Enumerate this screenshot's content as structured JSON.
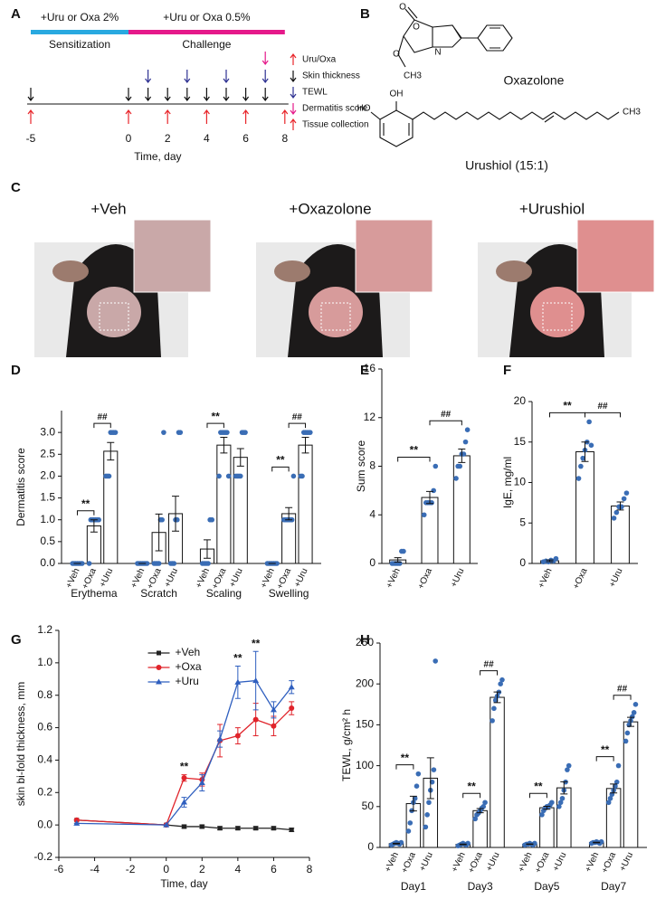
{
  "panel_labels": [
    "A",
    "B",
    "C",
    "D",
    "E",
    "F",
    "G",
    "H"
  ],
  "timeline": {
    "phases": [
      {
        "label": "+Uru or Oxa 2%",
        "name": "Sensitization",
        "start": -5,
        "end": 0,
        "color": "#29a9e0"
      },
      {
        "label": "+Uru or Oxa 0.5%",
        "name": "Challenge",
        "start": 0,
        "end": 8,
        "color": "#e5198a"
      }
    ],
    "events": [
      {
        "name": "Uru/Oxa",
        "color": "#e8262b",
        "side": "below",
        "days": [
          -5,
          0,
          2,
          4,
          6
        ]
      },
      {
        "name": "Skin thickness",
        "color": "#111111",
        "side": "above",
        "days": [
          -5,
          0,
          1,
          2,
          3,
          4,
          5,
          6,
          7
        ]
      },
      {
        "name": "TEWL",
        "color": "#2e3192",
        "side": "above",
        "days": [
          1,
          3,
          5,
          7
        ]
      },
      {
        "name": "Dermatitis score",
        "color": "#e5198a",
        "side": "above",
        "days": [
          7
        ]
      },
      {
        "name": "Tissue collection",
        "color": "#e8262b",
        "side": "below",
        "days": [
          8
        ]
      }
    ],
    "xticks": [
      -5,
      0,
      2,
      4,
      6,
      8
    ],
    "xlabel": "Time, day"
  },
  "structures": [
    {
      "name": "Oxazolone",
      "atoms": [
        "O",
        "O",
        "N",
        "O",
        "CH3"
      ]
    },
    {
      "name": "Urushiol (15:1)",
      "atoms": [
        "HO",
        "OH",
        "CH3"
      ]
    }
  ],
  "photo_labels": [
    "+Veh",
    "+Oxazolone",
    "+Urushiol"
  ],
  "chart_data": [
    {
      "type": "bar",
      "ylabel": "Dermatitis score",
      "categories": [
        "Erythema",
        "Scratch",
        "Scaling",
        "Swelling"
      ],
      "bar_color": "#ffffff",
      "point_color": "#3a6db5",
      "ylim": [
        0,
        3.5
      ],
      "yticks": [
        {
          "value": 0,
          "label": "0.0"
        },
        0.5,
        {
          "value": 1,
          "label": "1.0"
        },
        1.5,
        {
          "value": 2,
          "label": "2.0"
        },
        2.5,
        {
          "value": 3,
          "label": "3.0"
        }
      ],
      "series": [
        {
          "name": "+Veh",
          "values": [
            0,
            0,
            0.33,
            0
          ],
          "errors": [
            0,
            0,
            0.21,
            0
          ],
          "points": [
            [
              0,
              0,
              0,
              0,
              0,
              0,
              0
            ],
            [
              0,
              0,
              0,
              0,
              0,
              0,
              0
            ],
            [
              0,
              0,
              0,
              0,
              1,
              1
            ],
            [
              0,
              0,
              0,
              0,
              0,
              0,
              0
            ]
          ]
        },
        {
          "name": "+Oxa",
          "values": [
            0.86,
            0.71,
            2.71,
            1.14
          ],
          "errors": [
            0.14,
            0.42,
            0.18,
            0.14
          ],
          "points": [
            [
              0,
              1,
              1,
              1,
              1,
              1,
              1
            ],
            [
              0,
              0,
              0,
              0,
              1,
              1,
              3
            ],
            [
              2,
              3,
              3,
              3,
              3,
              3,
              2
            ],
            [
              1,
              1,
              1,
              1,
              1,
              1,
              2
            ]
          ]
        },
        {
          "name": "+Uru",
          "values": [
            2.57,
            1.14,
            2.43,
            2.71
          ],
          "errors": [
            0.2,
            0.4,
            0.2,
            0.18
          ],
          "points": [
            [
              2,
              2,
              2,
              3,
              3,
              3,
              3
            ],
            [
              0,
              0,
              0,
              1,
              1,
              3,
              3
            ],
            [
              2,
              2,
              2,
              2,
              3,
              3,
              3
            ],
            [
              2,
              2,
              3,
              3,
              3,
              3,
              3
            ]
          ]
        }
      ],
      "annotations": [
        {
          "text": "**",
          "category": 0,
          "from": 0,
          "to": 1
        },
        {
          "text": "##",
          "category": 0,
          "from": 1,
          "to": 2
        },
        {
          "text": "**",
          "category": 2,
          "from": 0,
          "to": 1
        },
        {
          "text": "**",
          "category": 3,
          "from": 0,
          "to": 1
        },
        {
          "text": "##",
          "category": 3,
          "from": 1,
          "to": 2
        }
      ]
    },
    {
      "type": "bar",
      "ylabel": "Sum score",
      "categories": [
        "+Veh",
        "+Oxa",
        "+Uru"
      ],
      "bar_color": "#ffffff",
      "point_color": "#3a6db5",
      "values": [
        0.29,
        5.43,
        8.86
      ],
      "errors": [
        0.18,
        0.5,
        0.55
      ],
      "points": [
        [
          0,
          0,
          0,
          0,
          0,
          1,
          1
        ],
        [
          4,
          5,
          5,
          5,
          5,
          6,
          8
        ],
        [
          7,
          8,
          8,
          9,
          9,
          10,
          11
        ]
      ],
      "ylim": [
        0,
        16
      ],
      "yticks": [
        0,
        4,
        8,
        12,
        16
      ],
      "annotations": [
        {
          "text": "**",
          "from": 0,
          "to": 1
        },
        {
          "text": "##",
          "from": 1,
          "to": 2
        }
      ]
    },
    {
      "type": "bar",
      "ylabel": "IgE, mg/ml",
      "categories": [
        "+Veh",
        "+Oxa",
        "+Uru"
      ],
      "bar_color": "#ffffff",
      "point_color": "#3a6db5",
      "values": [
        0.33,
        13.8,
        7.1
      ],
      "errors": [
        0.1,
        1.2,
        0.5
      ],
      "points": [
        [
          0.2,
          0.3,
          0.2,
          0.4,
          0.3,
          0.6
        ],
        [
          10.5,
          12,
          13,
          14,
          15,
          17.5,
          14.6
        ],
        [
          5.6,
          6.3,
          7,
          7,
          8,
          8.7
        ]
      ],
      "ylim": [
        0,
        20
      ],
      "yticks": [
        0,
        5,
        10,
        15,
        20
      ],
      "annotations": [
        {
          "text": "**",
          "from": 0,
          "to": 1
        },
        {
          "text": "##",
          "from": 1,
          "to": 2
        }
      ]
    },
    {
      "type": "line",
      "xlabel": "Time, day",
      "ylabel": "skin bi-fold thickness, mm",
      "x": [
        -5,
        0,
        1,
        2,
        3,
        4,
        5,
        6,
        7
      ],
      "series": [
        {
          "name": "+Veh",
          "color": "#222222",
          "marker": "square",
          "values": [
            0.03,
            0,
            -0.01,
            -0.01,
            -0.02,
            -0.02,
            -0.02,
            -0.02,
            -0.03
          ],
          "errors": [
            0,
            0,
            0.01,
            0.01,
            0.01,
            0.01,
            0.01,
            0.01,
            0.01
          ]
        },
        {
          "name": "+Oxa",
          "color": "#e0242b",
          "marker": "circle",
          "values": [
            0.03,
            0,
            0.29,
            0.28,
            0.52,
            0.55,
            0.65,
            0.61,
            0.72
          ],
          "errors": [
            0,
            0,
            0.02,
            0.04,
            0.1,
            0.05,
            0.1,
            0.06,
            0.04
          ]
        },
        {
          "name": "+Uru",
          "color": "#2f5fbf",
          "marker": "triangle",
          "values": [
            0.01,
            0,
            0.14,
            0.26,
            0.53,
            0.88,
            0.89,
            0.71,
            0.85
          ],
          "errors": [
            0,
            0,
            0.03,
            0.05,
            0.05,
            0.1,
            0.18,
            0.05,
            0.04
          ]
        }
      ],
      "xlim": [
        -6,
        8
      ],
      "xticks": [
        -6,
        -4,
        -2,
        0,
        2,
        4,
        6,
        8
      ],
      "ylim": [
        -0.2,
        1.2
      ],
      "yticks": [
        -0.2,
        {
          "value": 0,
          "label": "0.0"
        },
        0.2,
        0.4,
        0.6,
        0.8,
        {
          "value": 1,
          "label": "1.0"
        },
        1.2
      ],
      "legend": "upper center",
      "annotations": [
        {
          "text": "**",
          "x": 1
        },
        {
          "text": "**",
          "x": 4
        },
        {
          "text": "**",
          "x": 5
        }
      ]
    },
    {
      "type": "bar",
      "ylabel": "TEWL, g/cm² h",
      "categories": [
        "Day1",
        "Day3",
        "Day5",
        "Day7"
      ],
      "bar_color": "#ffffff",
      "point_color": "#3a6db5",
      "ylim": [
        0,
        250
      ],
      "yticks": [
        0,
        50,
        100,
        150,
        200,
        250
      ],
      "series": [
        {
          "name": "+Veh",
          "values": [
            4.7,
            3.7,
            4,
            6
          ],
          "errors": [
            0.4,
            0.4,
            0.3,
            0.3
          ],
          "points": [
            [
              3,
              4,
              5,
              6,
              5,
              4,
              6
            ],
            [
              2,
              3,
              4,
              5,
              4,
              3,
              5
            ],
            [
              3,
              4,
              4,
              5,
              4,
              3,
              5
            ],
            [
              5,
              6,
              6,
              7,
              6,
              5,
              7
            ]
          ]
        },
        {
          "name": "+Oxa",
          "values": [
            53.6,
            45,
            48.6,
            72.1
          ],
          "errors": [
            9,
            2.5,
            1.8,
            5.5
          ],
          "points": [
            [
              20,
              30,
              45,
              55,
              60,
              75,
              90
            ],
            [
              35,
              40,
              42,
              45,
              48,
              50,
              55
            ],
            [
              40,
              45,
              48,
              50,
              50,
              52,
              55
            ],
            [
              55,
              60,
              65,
              70,
              75,
              80,
              100
            ]
          ]
        },
        {
          "name": "+Uru",
          "values": [
            84.7,
            183.6,
            72.9,
            153.6
          ],
          "errors": [
            25,
            6.5,
            7.5,
            5.5
          ],
          "points": [
            [
              25,
              40,
              55,
              70,
              80,
              95,
              228
            ],
            [
              155,
              170,
              180,
              185,
              190,
              200,
              205
            ],
            [
              50,
              55,
              60,
              70,
              80,
              95,
              100
            ],
            [
              130,
              140,
              150,
              155,
              160,
              165,
              175
            ]
          ]
        }
      ],
      "annotations": [
        {
          "text": "**",
          "category": 0,
          "from": 0,
          "to": 1
        },
        {
          "text": "**",
          "category": 1,
          "from": 0,
          "to": 1
        },
        {
          "text": "##",
          "category": 1,
          "from": 1,
          "to": 2
        },
        {
          "text": "**",
          "category": 2,
          "from": 0,
          "to": 1
        },
        {
          "text": "**",
          "category": 3,
          "from": 0,
          "to": 1
        },
        {
          "text": "##",
          "category": 3,
          "from": 1,
          "to": 2
        }
      ]
    }
  ]
}
